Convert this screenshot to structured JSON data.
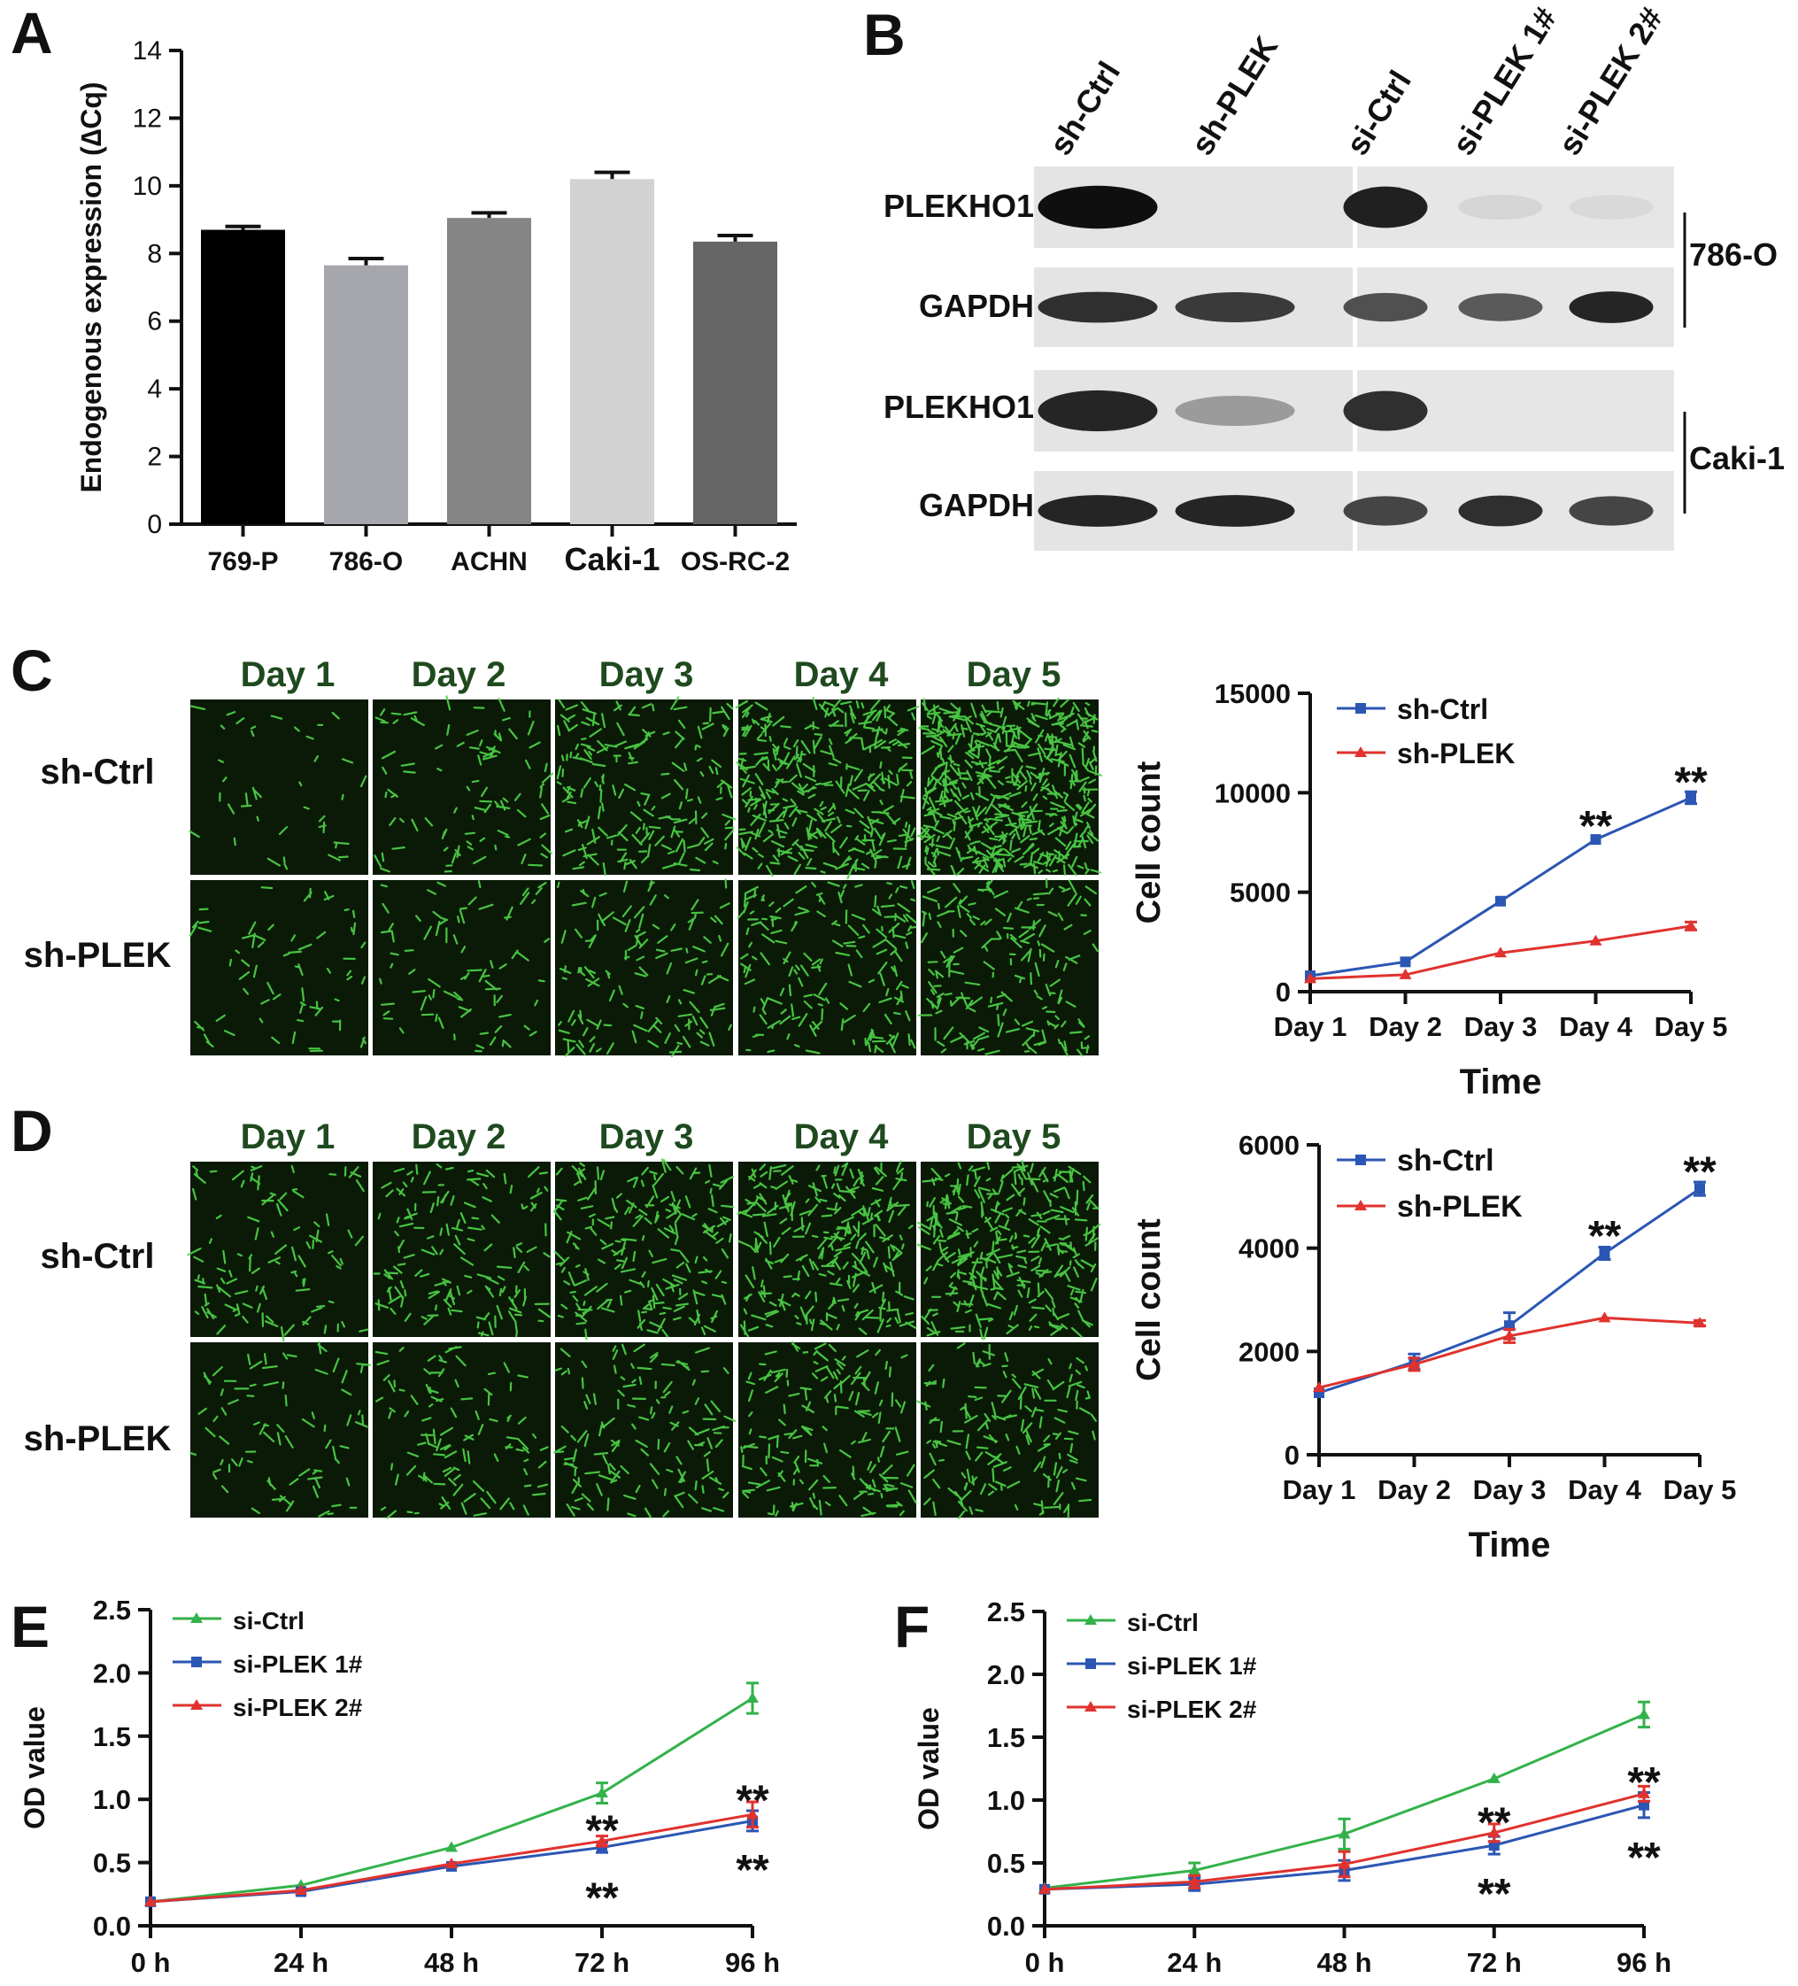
{
  "panels": {
    "A": "A",
    "B": "B",
    "C": "C",
    "D": "D",
    "E": "E",
    "F": "F"
  },
  "chart_data": [
    {
      "panel": "A",
      "type": "bar",
      "ylabel": "Endogenous expression (∆Cq)",
      "categories": [
        "769-P",
        "786-O",
        "ACHN",
        "Caki-1",
        "OS-RC-2"
      ],
      "values": [
        8.7,
        7.65,
        9.05,
        10.2,
        8.35
      ],
      "errors": [
        0.1,
        0.2,
        0.15,
        0.2,
        0.18
      ],
      "colors": [
        "#000000",
        "#a6a6ad",
        "#858585",
        "#d2d2d2",
        "#656565"
      ],
      "ylim": [
        0,
        14
      ],
      "yticks": [
        0,
        2,
        4,
        6,
        8,
        10,
        12,
        14
      ]
    },
    {
      "panel": "C",
      "type": "line",
      "xlabel": "Time",
      "ylabel": "Cell count",
      "x": [
        "Day 1",
        "Day 2",
        "Day 3",
        "Day 4",
        "Day 5"
      ],
      "ylim": [
        0,
        15000
      ],
      "yticks": [
        0,
        5000,
        10000,
        15000
      ],
      "legend": "top-left",
      "series": [
        {
          "name": "sh-Ctrl",
          "color": "#2b56b3",
          "values": [
            800,
            1500,
            4550,
            7650,
            9750
          ],
          "errors": [
            0,
            0,
            0,
            0,
            300
          ]
        },
        {
          "name": "sh-PLEK",
          "color": "#e0322e",
          "values": [
            650,
            850,
            1950,
            2550,
            3300
          ],
          "errors": [
            0,
            0,
            0,
            0,
            200
          ]
        }
      ],
      "annotations": [
        {
          "x": "Day 4",
          "y": 8500,
          "text": "**"
        },
        {
          "x": "Day 5",
          "y": 10700,
          "text": "**"
        }
      ]
    },
    {
      "panel": "D",
      "type": "line",
      "xlabel": "Time",
      "ylabel": "Cell count",
      "x": [
        "Day 1",
        "Day 2",
        "Day 3",
        "Day 4",
        "Day 5"
      ],
      "ylim": [
        0,
        6000
      ],
      "yticks": [
        0,
        2000,
        4000,
        6000
      ],
      "legend": "top-left",
      "series": [
        {
          "name": "sh-Ctrl",
          "color": "#2b56b3",
          "values": [
            1200,
            1800,
            2500,
            3900,
            5150
          ],
          "errors": [
            0,
            150,
            250,
            120,
            130
          ]
        },
        {
          "name": "sh-PLEK",
          "color": "#e0322e",
          "values": [
            1300,
            1750,
            2300,
            2650,
            2550
          ],
          "errors": [
            0,
            120,
            130,
            0,
            50
          ]
        }
      ],
      "annotations": [
        {
          "x": "Day 4",
          "y": 4300,
          "text": "**"
        },
        {
          "x": "Day 5",
          "y": 5550,
          "text": "**"
        }
      ]
    },
    {
      "panel": "E",
      "type": "line",
      "ylabel": "OD value",
      "x": [
        "0 h",
        "24 h",
        "48 h",
        "72 h",
        "96 h"
      ],
      "ylim": [
        0,
        2.5
      ],
      "yticks": [
        "0.0",
        "0.5",
        "1.0",
        "1.5",
        "2.0",
        "2.5"
      ],
      "legend": "top-left",
      "series": [
        {
          "name": "si-Ctrl",
          "color": "#33b24a",
          "values": [
            0.19,
            0.32,
            0.62,
            1.05,
            1.8
          ],
          "errors": [
            0,
            0,
            0,
            0.08,
            0.12
          ]
        },
        {
          "name": "si-PLEK 1#",
          "color": "#2b56b3",
          "values": [
            0.19,
            0.27,
            0.47,
            0.62,
            0.83
          ],
          "errors": [
            0,
            0,
            0,
            0.04,
            0.08
          ]
        },
        {
          "name": "si-PLEK 2#",
          "color": "#e0322e",
          "values": [
            0.19,
            0.28,
            0.49,
            0.67,
            0.88
          ],
          "errors": [
            0,
            0,
            0,
            0.04,
            0.1
          ]
        }
      ],
      "annotations": [
        {
          "x": "72 h",
          "y": 0.78,
          "text": "**"
        },
        {
          "x": "72 h",
          "y": 0.25,
          "text": "**"
        },
        {
          "x": "96 h",
          "y": 1.02,
          "text": "**"
        },
        {
          "x": "96 h",
          "y": 0.47,
          "text": "**"
        }
      ]
    },
    {
      "panel": "F",
      "type": "line",
      "ylabel": "OD value",
      "x": [
        "0 h",
        "24 h",
        "48 h",
        "72 h",
        "96 h"
      ],
      "ylim": [
        0,
        2.5
      ],
      "yticks": [
        "0.0",
        "0.5",
        "1.0",
        "1.5",
        "2.0",
        "2.5"
      ],
      "legend": "top-left",
      "series": [
        {
          "name": "si-Ctrl",
          "color": "#33b24a",
          "values": [
            0.3,
            0.44,
            0.73,
            1.17,
            1.68
          ],
          "errors": [
            0,
            0.06,
            0.12,
            0,
            0.1
          ]
        },
        {
          "name": "si-PLEK 1#",
          "color": "#2b56b3",
          "values": [
            0.29,
            0.33,
            0.44,
            0.64,
            0.96
          ],
          "errors": [
            0,
            0.05,
            0.08,
            0.07,
            0.1
          ]
        },
        {
          "name": "si-PLEK 2#",
          "color": "#e0322e",
          "values": [
            0.29,
            0.35,
            0.49,
            0.74,
            1.05
          ],
          "errors": [
            0,
            0.05,
            0.1,
            0.07,
            0.06
          ]
        }
      ],
      "annotations": [
        {
          "x": "72 h",
          "y": 0.85,
          "text": "**"
        },
        {
          "x": "72 h",
          "y": 0.28,
          "text": "**"
        },
        {
          "x": "96 h",
          "y": 1.17,
          "text": "**"
        },
        {
          "x": "96 h",
          "y": 0.57,
          "text": "**"
        }
      ]
    }
  ],
  "western_blot": {
    "lanes": [
      "sh-Ctrl",
      "sh-PLEK",
      "si-Ctrl",
      "si-PLEK 1#",
      "si-PLEK 2#"
    ],
    "rows": [
      "PLEKHO1",
      "GAPDH",
      "PLEKHO1",
      "GAPDH"
    ],
    "cell_lines": [
      "786-O",
      "Caki-1"
    ],
    "band_intensity": [
      [
        1.0,
        0.0,
        0.92,
        0.08,
        0.06
      ],
      [
        0.85,
        0.8,
        0.7,
        0.65,
        0.9
      ],
      [
        0.9,
        0.35,
        0.85,
        0.0,
        0.0
      ],
      [
        0.9,
        0.9,
        0.75,
        0.85,
        0.75
      ]
    ]
  },
  "micrographs": [
    {
      "panel": "C",
      "days": [
        "Day 1",
        "Day 2",
        "Day 3",
        "Day 4",
        "Day 5"
      ],
      "rows": [
        "sh-Ctrl",
        "sh-PLEK"
      ],
      "density": [
        [
          0.06,
          0.14,
          0.28,
          0.5,
          0.8
        ],
        [
          0.1,
          0.12,
          0.2,
          0.26,
          0.28
        ]
      ]
    },
    {
      "panel": "D",
      "days": [
        "Day 1",
        "Day 2",
        "Day 3",
        "Day 4",
        "Day 5"
      ],
      "rows": [
        "sh-Ctrl",
        "sh-PLEK"
      ],
      "density": [
        [
          0.16,
          0.22,
          0.3,
          0.4,
          0.48
        ],
        [
          0.12,
          0.16,
          0.2,
          0.25,
          0.24
        ]
      ]
    }
  ]
}
